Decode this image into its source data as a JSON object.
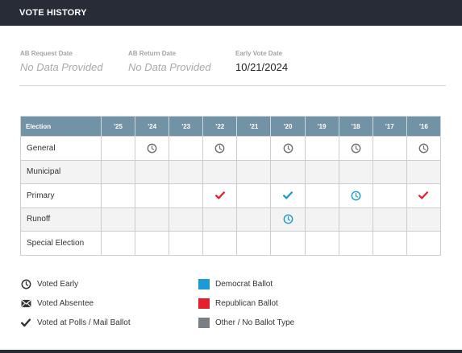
{
  "header": {
    "title": "VOTE HISTORY"
  },
  "dates": [
    {
      "label": "AB Request Date",
      "value": "No Data Provided",
      "empty": true
    },
    {
      "label": "AB Return Date",
      "value": "No Data Provided",
      "empty": true
    },
    {
      "label": "Early Vote Date",
      "value": "10/21/2024",
      "empty": false
    }
  ],
  "table": {
    "first_header": "Election",
    "years": [
      "'25",
      "'24",
      "'23",
      "'22",
      "'21",
      "'20",
      "'19",
      "'18",
      "'17",
      "'16"
    ],
    "rows": [
      {
        "name": "General",
        "marks": [
          "",
          "early-gray",
          "",
          "early-gray",
          "",
          "early-gray",
          "",
          "early-gray",
          "",
          "early-gray"
        ]
      },
      {
        "name": "Municipal",
        "marks": [
          "",
          "",
          "",
          "",
          "",
          "",
          "",
          "",
          "",
          ""
        ]
      },
      {
        "name": "Primary",
        "marks": [
          "",
          "",
          "",
          "check-red",
          "",
          "check-blue",
          "",
          "early-blue",
          "",
          "check-red"
        ]
      },
      {
        "name": "Runoff",
        "marks": [
          "",
          "",
          "",
          "",
          "",
          "early-blue",
          "",
          "",
          "",
          ""
        ]
      },
      {
        "name": "Special Election",
        "marks": [
          "",
          "",
          "",
          "",
          "",
          "",
          "",
          "",
          "",
          ""
        ]
      }
    ]
  },
  "legend": {
    "symbols": [
      {
        "icon": "clock-icon",
        "label": "Voted Early"
      },
      {
        "icon": "envelope-icon",
        "label": "Voted Absentee"
      },
      {
        "icon": "checkmark-icon",
        "label": "Voted at Polls / Mail Ballot"
      }
    ],
    "colors": [
      {
        "color": "#1b9ad4",
        "label": "Democrat Ballot"
      },
      {
        "color": "#e5202e",
        "label": "Republican Ballot"
      },
      {
        "color": "#7a7f85",
        "label": "Other / No Ballot Type"
      }
    ]
  },
  "colors": {
    "gray": "#6e6e6e",
    "blue": "#1b9ad4",
    "red": "#e5202e"
  }
}
